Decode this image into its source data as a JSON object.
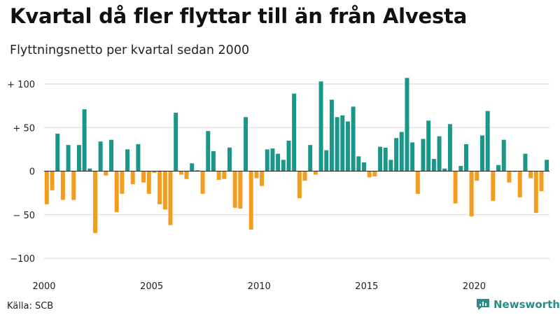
{
  "header": {
    "title": "Kvartal då fler flyttar till än från Alvesta",
    "subtitle": "Flyttningsnetto per kvartal sedan 2000"
  },
  "footer": {
    "source": "Källa: SCB",
    "brand": "Newsworthy"
  },
  "colors": {
    "positive": "#1b978a",
    "negative": "#f49c1c",
    "brand": "#2a8d88"
  },
  "chart_data": {
    "type": "bar",
    "title": "Kvartal då fler flyttar till än från Alvesta",
    "subtitle": "Flyttningsnetto per kvartal sedan 2000",
    "xlabel": "",
    "ylabel": "",
    "ylim": [
      -100,
      100
    ],
    "yticks": [
      100,
      50,
      0,
      -50,
      -100
    ],
    "ytick_labels": [
      "+ 100",
      "+ 50",
      "0",
      "− 50",
      "−100"
    ],
    "xtick_labels": [
      "2000",
      "2005",
      "2010",
      "2015",
      "2020"
    ],
    "grid": true,
    "start_year": 2000,
    "values": [
      -38,
      -22,
      43,
      -33,
      30,
      -33,
      30,
      71,
      3,
      -71,
      34,
      -5,
      36,
      -47,
      -26,
      25,
      -15,
      31,
      -13,
      -26,
      -2,
      -38,
      -44,
      -62,
      67,
      -4,
      -9,
      9,
      1,
      -26,
      46,
      23,
      -10,
      -9,
      27,
      -42,
      -43,
      62,
      -67,
      -8,
      -17,
      25,
      26,
      20,
      13,
      35,
      89,
      -31,
      -11,
      30,
      -4,
      103,
      24,
      82,
      62,
      64,
      57,
      74,
      17,
      10,
      -7,
      -6,
      28,
      27,
      13,
      38,
      45,
      107,
      33,
      -26,
      37,
      58,
      14,
      40,
      3,
      54,
      -37,
      6,
      31,
      -52,
      -11,
      41,
      69,
      -34,
      7,
      36,
      -13,
      -1,
      -30,
      20,
      -8,
      -48,
      -23,
      13
    ]
  }
}
